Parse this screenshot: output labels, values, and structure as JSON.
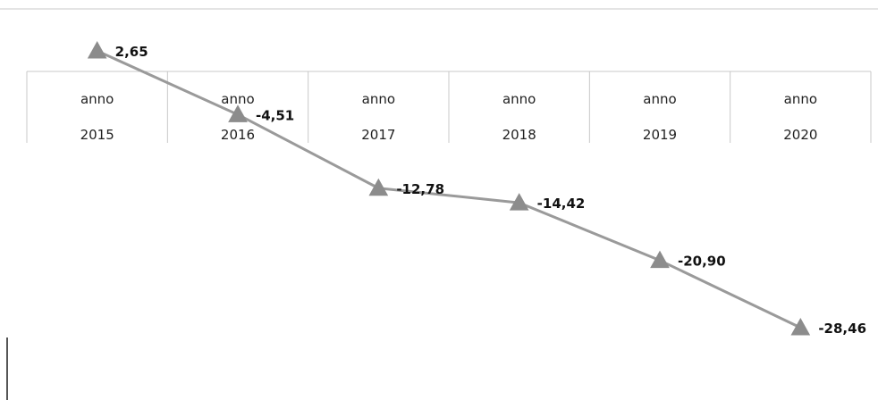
{
  "chart_data": {
    "type": "line",
    "categories": [
      {
        "line1": "anno",
        "line2": "2015"
      },
      {
        "line1": "anno",
        "line2": "2016"
      },
      {
        "line1": "anno",
        "line2": "2017"
      },
      {
        "line1": "anno",
        "line2": "2018"
      },
      {
        "line1": "anno",
        "line2": "2019"
      },
      {
        "line1": "anno",
        "line2": "2020"
      }
    ],
    "values": [
      2.65,
      -4.51,
      -12.78,
      -14.42,
      -20.9,
      -28.46
    ],
    "data_labels": [
      "2,65",
      "-4,51",
      "-12,78",
      "-14,42",
      "-20,90",
      "-28,46"
    ],
    "marker": "triangle",
    "line_color": "#9a9a9a",
    "marker_color": "#8c8c8c",
    "category_axis_position": "top"
  }
}
